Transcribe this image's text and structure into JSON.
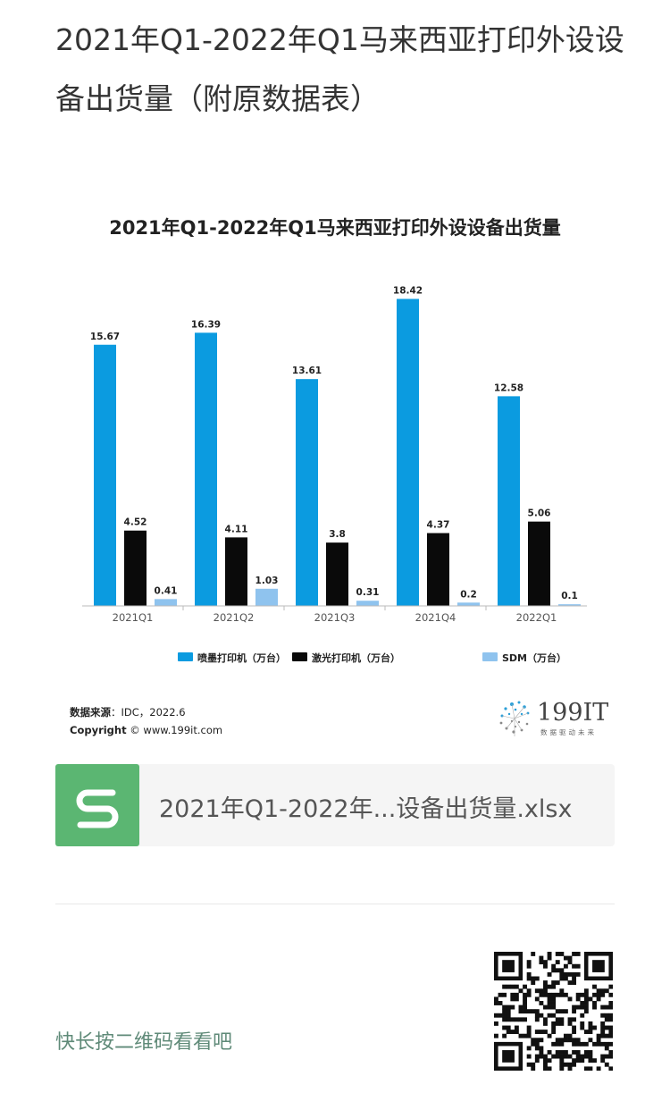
{
  "page": {
    "title": "2021年Q1-2022年Q1马来西亚打印外设设备出货量（附原数据表）"
  },
  "chart_data": {
    "type": "bar",
    "title": "2021年Q1-2022年Q1马来西亚打印外设设备出货量",
    "categories": [
      "2021Q1",
      "2021Q2",
      "2021Q3",
      "2021Q4",
      "2022Q1"
    ],
    "series": [
      {
        "name": "喷墨打印机（万台）",
        "values": [
          15.67,
          16.39,
          13.61,
          18.42,
          12.58
        ],
        "color": "#0b9be0"
      },
      {
        "name": "激光打印机（万台）",
        "values": [
          4.52,
          4.11,
          3.8,
          4.37,
          5.06
        ],
        "color": "#0a0a0a"
      },
      {
        "name": "SDM（万台）",
        "values": [
          0.41,
          1.03,
          0.31,
          0.2,
          0.1
        ],
        "color": "#8fc3ee"
      }
    ],
    "value_labels": [
      [
        "15.67",
        "16.39",
        "13.61",
        "18.42",
        "12.58"
      ],
      [
        "4.52",
        "4.11",
        "3.8",
        "4.37",
        "5.06"
      ],
      [
        "0.41",
        "1.03",
        "0.31",
        "0.2",
        "0.1"
      ]
    ],
    "ylim": [
      0,
      20
    ],
    "grid": false,
    "legend_position": "bottom"
  },
  "source": {
    "source_key": "数据来源",
    "source_value": "：IDC，2022.6",
    "copyright_key": "Copyright",
    "copyright_value": " © www.199it.com"
  },
  "brand": {
    "name": "199IT",
    "tagline": "数据驱动未来"
  },
  "attachment": {
    "icon": "spreadsheet-s-icon",
    "file_name": "2021年Q1-2022年...设备出货量.xlsx",
    "icon_color": "#5bb672"
  },
  "footer": {
    "qr_hint": "快长按二维码看看吧",
    "qr_icon": "qr-code-icon"
  }
}
